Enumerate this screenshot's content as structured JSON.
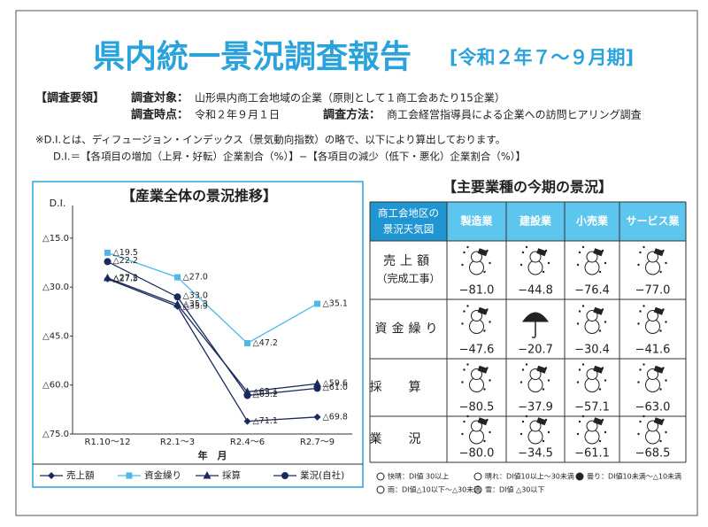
{
  "header": {
    "title": "県内統一景況調査報告",
    "period": "[令和２年７〜９月期]"
  },
  "survey": {
    "heading": "【調査要領】",
    "items": [
      {
        "label": "調査対象：",
        "text": "山形県内商工会地域の企業（原則として１商工会あたり15企業）"
      },
      {
        "label": "調査時点：",
        "text": "令和２年９月１日"
      },
      {
        "label": "調査方法：",
        "text": "商工会経営指導員による企業への訪問ヒアリング調査"
      }
    ]
  },
  "note": {
    "line1": "※D.I.とは、ディフュージョン・インデックス（景気動向指数）の略で、以下により算出しております。",
    "line2": "D.I.＝【各項目の増加（上昇・好転）企業割合（%）】−【各項目の減少（低下・悪化）企業割合（%）】"
  },
  "chart_data": {
    "type": "line",
    "title": "【産業全体の景況推移】",
    "y_label": "D.I.",
    "x_label": "年　月",
    "categories": [
      "R1.10〜12",
      "R2.1〜3",
      "R2.4〜6",
      "R2.7〜9"
    ],
    "ylim": [
      -75,
      -5
    ],
    "yticks": [
      {
        "value": -15,
        "label": "△15.0"
      },
      {
        "value": -30,
        "label": "△30.0"
      },
      {
        "value": -45,
        "label": "△45.0"
      },
      {
        "value": -60,
        "label": "△60.0"
      },
      {
        "value": -75,
        "label": "△75.0"
      }
    ],
    "series": [
      {
        "name": "売上額",
        "color": "#1a2a5e",
        "marker": "diamond",
        "values": [
          -27.5,
          -35.9,
          -71.1,
          -69.8
        ],
        "value_labels": [
          "△27.5",
          "△35.9",
          "△71.1",
          "△69.8"
        ]
      },
      {
        "name": "資金繰り",
        "color": "#4fb8e6",
        "marker": "square",
        "values": [
          -19.5,
          -27.0,
          -47.2,
          -35.1
        ],
        "value_labels": [
          "△19.5",
          "△27.0",
          "△47.2",
          "△35.1"
        ]
      },
      {
        "name": "採算",
        "color": "#1a2a5e",
        "marker": "triangle",
        "values": [
          -27.2,
          -35.3,
          -62.1,
          -59.6
        ],
        "value_labels": [
          "△27.2",
          "△35.3",
          "△62.1",
          "△59.6"
        ]
      },
      {
        "name": "業況(自社)",
        "color": "#1a2a5e",
        "marker": "circle",
        "values": [
          -22.2,
          -33.0,
          -63.2,
          -61.0
        ],
        "value_labels": [
          "△22.2",
          "△33.0",
          "△63.2",
          "△61.0"
        ]
      }
    ]
  },
  "table": {
    "title": "【主要業種の今期の景況】",
    "corner": [
      "商工会地区の",
      "景況天気図"
    ],
    "columns": [
      "製造業",
      "建設業",
      "小売業",
      "サービス業"
    ],
    "rows": [
      {
        "label": "売上額",
        "sublabel": "（完成工事）",
        "values": [
          "−81.0",
          "−44.8",
          "−76.4",
          "−77.0"
        ]
      },
      {
        "label": "資金繰り",
        "values": [
          "−47.6",
          "−20.7",
          "−30.4",
          "−41.6"
        ]
      },
      {
        "label": "採算",
        "values": [
          "−80.5",
          "−37.9",
          "−57.1",
          "−63.0"
        ]
      },
      {
        "label": "業況",
        "values": [
          "−80.0",
          "−34.5",
          "−61.1",
          "−68.5"
        ]
      }
    ]
  },
  "weather_legend": [
    "快晴：DI値 30以上",
    "晴れ：DI値10以上〜30未満",
    "曇り：DI値10未満〜△10未満",
    "雨：DI値△10以下〜△30未満",
    "雪：DI値 △30以下"
  ]
}
